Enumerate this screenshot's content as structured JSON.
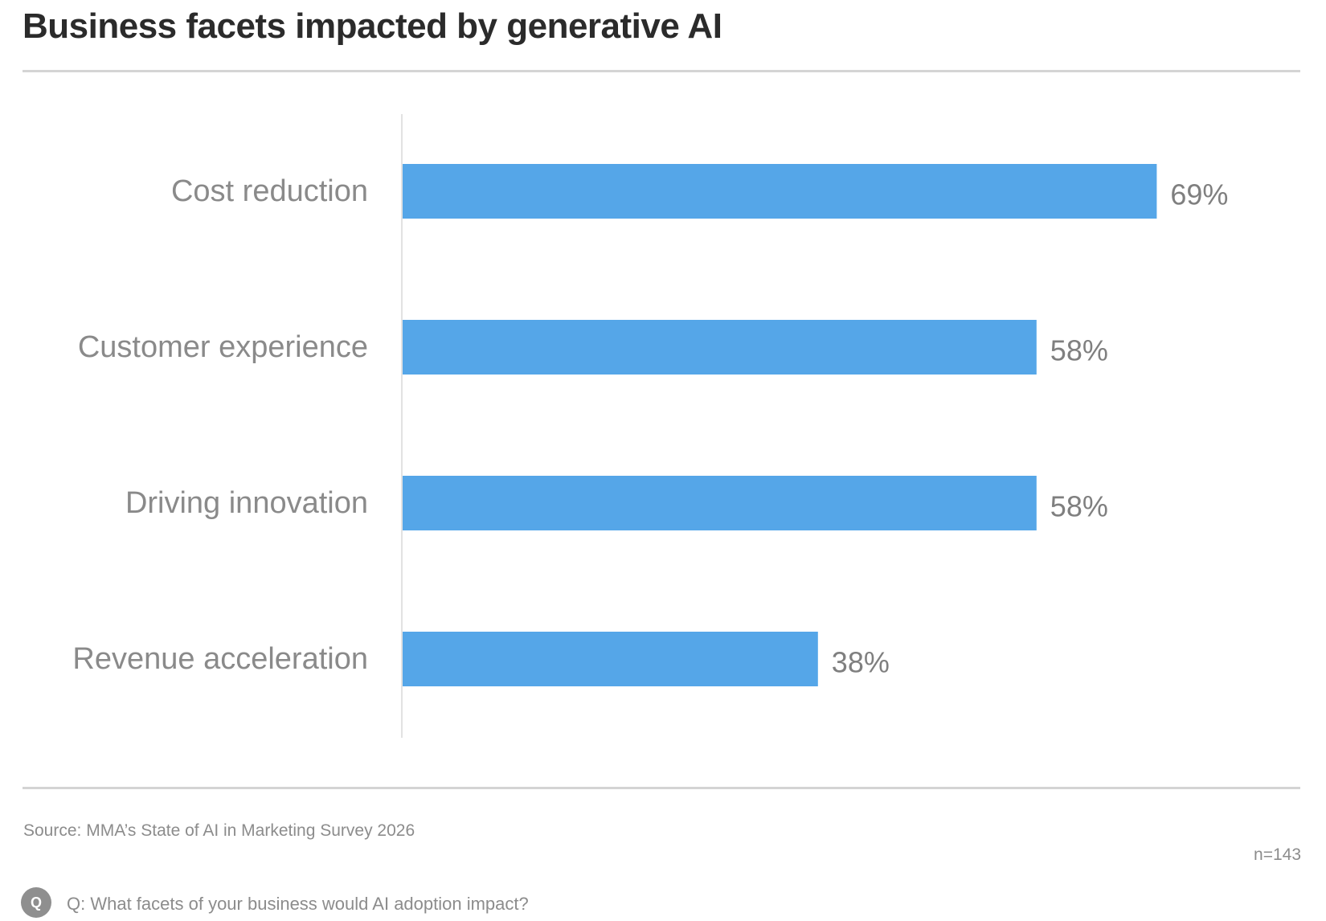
{
  "header": {
    "title": "Business facets impacted by generative AI"
  },
  "chart_data": {
    "type": "bar",
    "orientation": "horizontal",
    "categories": [
      "Cost reduction",
      "Customer experience",
      "Driving innovation",
      "Revenue acceleration"
    ],
    "values": [
      69,
      58,
      58,
      38
    ],
    "value_labels": [
      "69%",
      "58%",
      "58%",
      "38%"
    ],
    "unit": "%",
    "bar_color": "#55a6e8",
    "xlim": [
      0,
      100
    ],
    "grid": false,
    "legend": "none"
  },
  "footer": {
    "source": "Source: MMA’s State of AI in Marketing Survey 2026",
    "sample_size": "n=143",
    "question_icon": "Q",
    "question": "Q: What facets of your business would AI adoption impact?"
  }
}
